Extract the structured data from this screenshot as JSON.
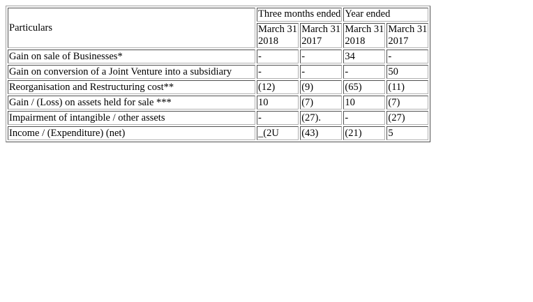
{
  "table": {
    "particulars_header": "Particulars",
    "group_headers": [
      "Three months ended",
      "Year ended"
    ],
    "date_headers": [
      {
        "month": "March 31",
        "year": "2018"
      },
      {
        "month": "March 31",
        "year": "2017"
      },
      {
        "month": "March 31",
        "year": "2018"
      },
      {
        "month": "March 31",
        "year": "2017"
      }
    ],
    "rows": [
      {
        "label": "Gain on sale of Businesses*",
        "values": [
          "-",
          "-",
          "34",
          "-"
        ]
      },
      {
        "label": "Gain on conversion of a Joint Venture into a subsidiary",
        "values": [
          "-",
          "-",
          "-",
          "50"
        ]
      },
      {
        "label": "Reorganisation and Restructuring cost**",
        "values": [
          "(12)",
          "(9)",
          "(65)",
          "(11)"
        ]
      },
      {
        "label": "Gain / (Loss) on assets held for sale ***",
        "values": [
          "10",
          "(7)",
          "10",
          "(7)"
        ]
      },
      {
        "label": "Impairment of intangible / other assets",
        "values": [
          "-",
          "(27).",
          "-",
          "(27)"
        ]
      },
      {
        "label": "Income / (Expenditure) (net)",
        "values": [
          "_(2U",
          "(43)",
          "(21)",
          "5"
        ]
      }
    ]
  }
}
